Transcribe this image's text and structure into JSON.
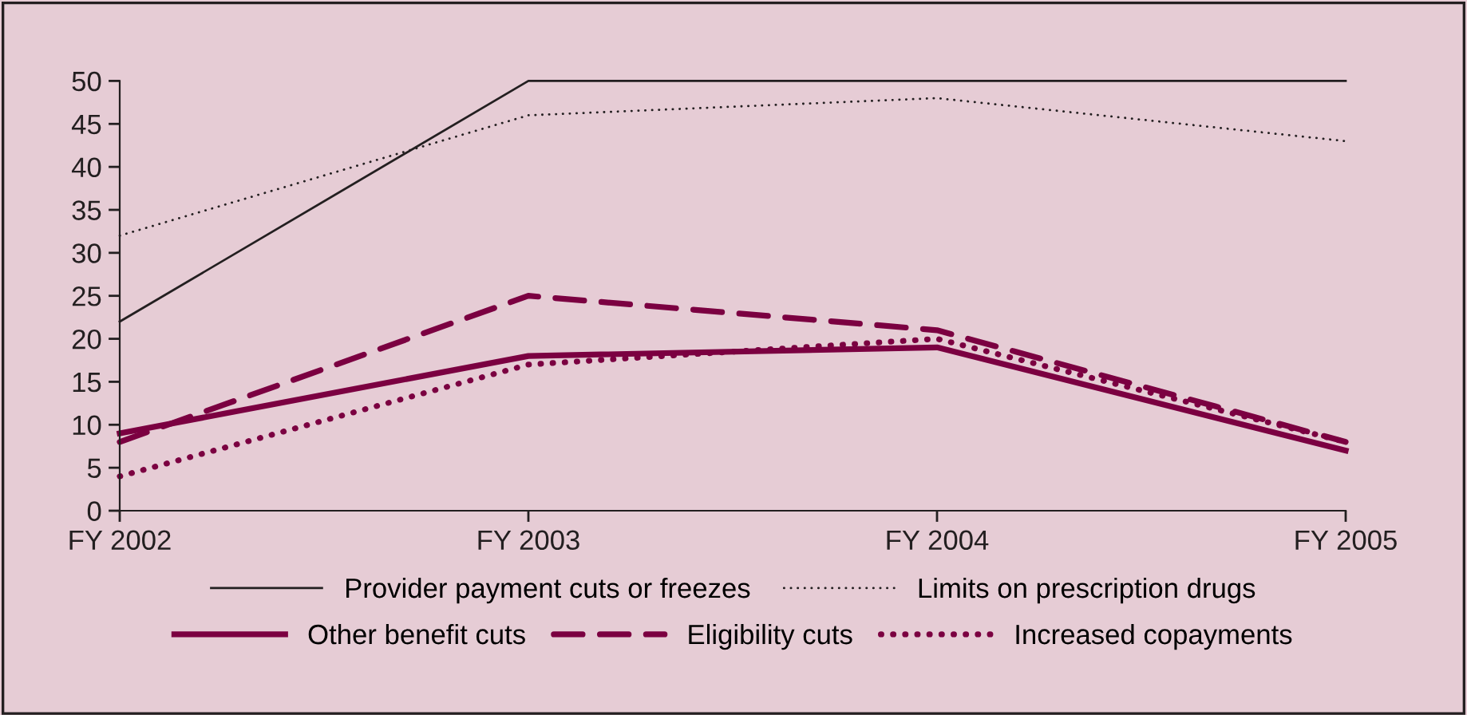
{
  "chart_data": {
    "type": "line",
    "categories": [
      "FY 2002",
      "FY 2003",
      "FY 2004",
      "FY 2005"
    ],
    "series": [
      {
        "name": "Provider payment cuts or freezes",
        "color": "#231f20",
        "line_style": "solid",
        "values": [
          22,
          50,
          50,
          50
        ]
      },
      {
        "name": "Limits on prescription drugs",
        "color": "#231f20",
        "line_style": "dotted",
        "values": [
          32,
          46,
          48,
          43
        ]
      },
      {
        "name": "Other benefit cuts",
        "color": "#7b0041",
        "line_style": "solid",
        "values": [
          9,
          18,
          19,
          7
        ]
      },
      {
        "name": "Eligibility cuts",
        "color": "#7b0041",
        "line_style": "dashed",
        "values": [
          8,
          25,
          21,
          8
        ]
      },
      {
        "name": "Increased copayments",
        "color": "#7b0041",
        "line_style": "dotted",
        "values": [
          4,
          17,
          20,
          8
        ]
      }
    ],
    "ylim": [
      0,
      50
    ],
    "yticks": [
      0,
      5,
      10,
      15,
      20,
      25,
      30,
      35,
      40,
      45,
      50
    ],
    "grid": false,
    "legend": "bottom",
    "marker": "none"
  }
}
